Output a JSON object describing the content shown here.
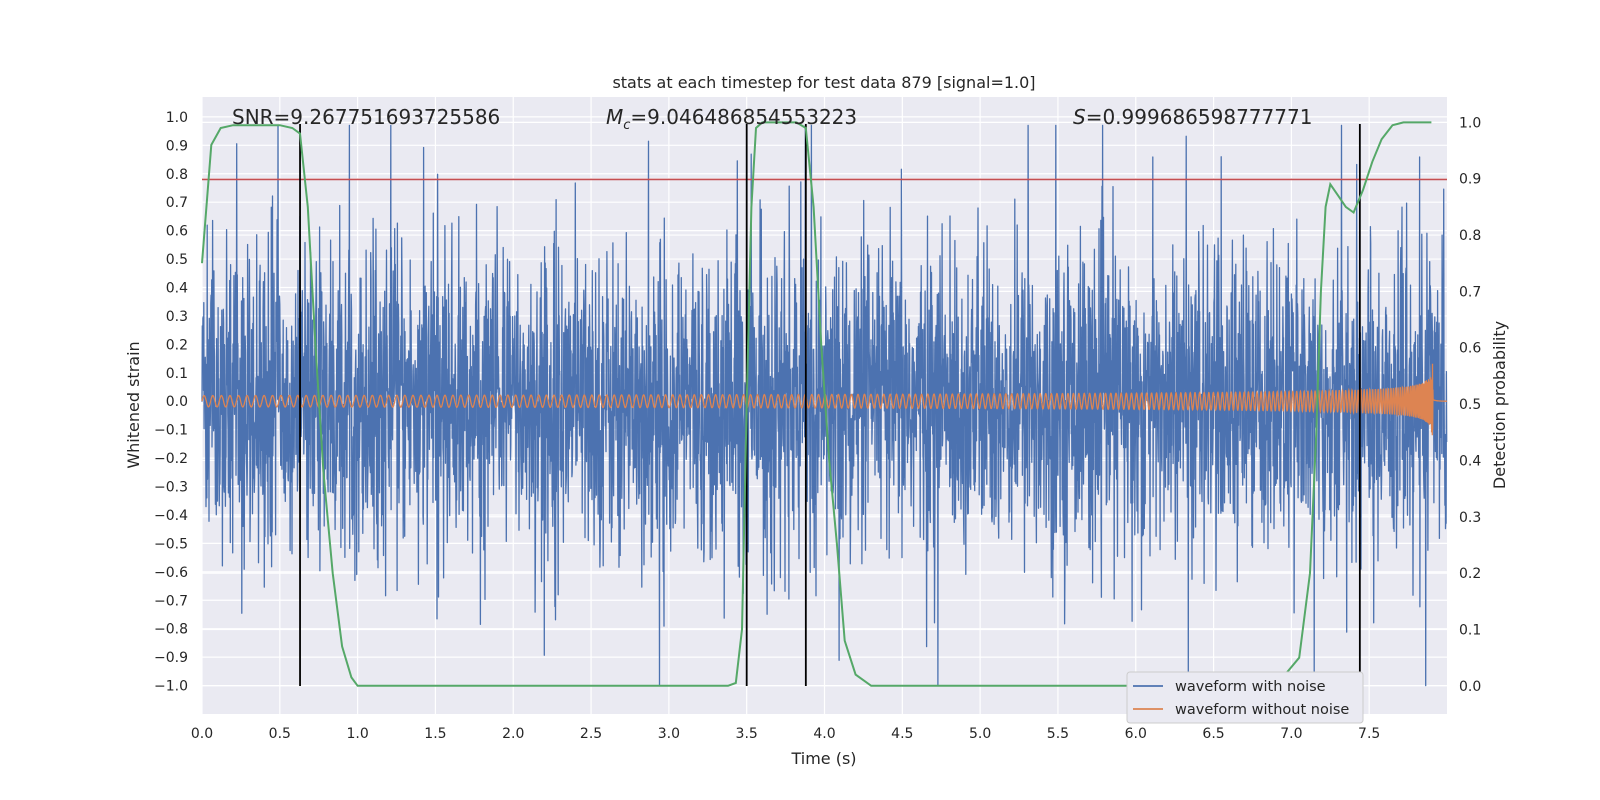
{
  "chart_data": {
    "type": "line",
    "title": "stats at each timestep for test data 879 [signal=1.0]",
    "xlabel": "Time (s)",
    "ylabel": "Whitened strain",
    "ylabel_right": "Detection probability",
    "xlim": [
      0.0,
      8.0
    ],
    "ylim": [
      -1.1,
      1.07
    ],
    "ylim_right": [
      -0.05,
      1.045
    ],
    "x_ticks": [
      "0.0",
      "0.5",
      "1.0",
      "1.5",
      "2.0",
      "2.5",
      "3.0",
      "3.5",
      "4.0",
      "4.5",
      "5.0",
      "5.5",
      "6.0",
      "6.5",
      "7.0",
      "7.5"
    ],
    "y_ticks": [
      "1.0",
      "0.9",
      "0.8",
      "0.7",
      "0.6",
      "0.5",
      "0.4",
      "0.3",
      "0.2",
      "0.1",
      "0.0",
      "−0.1",
      "−0.2",
      "−0.3",
      "−0.4",
      "−0.5",
      "−0.6",
      "−0.7",
      "−0.8",
      "−0.9",
      "−1.0"
    ],
    "y_ticks_right": [
      "1.0",
      "0.9",
      "0.8",
      "0.7",
      "0.6",
      "0.5",
      "0.4",
      "0.3",
      "0.2",
      "0.1",
      "0.0"
    ],
    "grid": true,
    "legend_position": "lower right",
    "annotations": {
      "snr": "SNR=9.267751693725586",
      "mc_symbol": "M",
      "mc_sub": "c",
      "mc_value": "=9.046486854553223",
      "s_symbol": "S",
      "s_value": "=0.999686598777771"
    },
    "threshold_line": {
      "y": 0.78,
      "color": "#c44e52"
    },
    "vertical_markers_x": [
      0.63,
      3.5,
      3.88,
      7.44
    ],
    "series": [
      {
        "name": "waveform with noise",
        "color": "#4c72b0",
        "axis": "left",
        "description_stats": {
          "typical_abs_amplitude": 0.45,
          "peak_max": 0.97,
          "peak_min": -1.0
        }
      },
      {
        "name": "waveform without noise",
        "color": "#dd8452",
        "axis": "left",
        "chirp": {
          "f_start_hz": 18,
          "amp_start": 0.02,
          "peak_amp": 0.34,
          "merger_time": 7.91
        }
      },
      {
        "color": "#55a868",
        "axis": "right",
        "x": [
          0.0,
          0.06,
          0.12,
          0.2,
          0.3,
          0.4,
          0.5,
          0.58,
          0.63,
          0.68,
          0.73,
          0.78,
          0.84,
          0.9,
          0.96,
          1.0,
          1.1,
          2.0,
          3.0,
          3.38,
          3.43,
          3.47,
          3.5,
          3.53,
          3.56,
          3.6,
          3.7,
          3.82,
          3.88,
          3.93,
          3.98,
          4.03,
          4.08,
          4.13,
          4.2,
          4.3,
          5.0,
          6.0,
          6.9,
          7.05,
          7.12,
          7.16,
          7.19,
          7.22,
          7.25,
          7.3,
          7.35,
          7.4,
          7.46,
          7.52,
          7.58,
          7.65,
          7.72,
          7.8,
          7.9
        ],
        "y": [
          0.75,
          0.96,
          0.99,
          0.995,
          0.995,
          0.995,
          0.995,
          0.99,
          0.98,
          0.85,
          0.6,
          0.38,
          0.2,
          0.07,
          0.015,
          0.0,
          0.0,
          0.0,
          0.0,
          0.0,
          0.005,
          0.1,
          0.5,
          0.85,
          0.99,
          1.0,
          1.0,
          1.0,
          0.99,
          0.85,
          0.6,
          0.4,
          0.25,
          0.08,
          0.02,
          0.0,
          0.0,
          0.0,
          0.0,
          0.05,
          0.2,
          0.45,
          0.7,
          0.85,
          0.89,
          0.87,
          0.85,
          0.84,
          0.88,
          0.93,
          0.97,
          0.995,
          1.0,
          1.0,
          1.0
        ]
      }
    ]
  }
}
